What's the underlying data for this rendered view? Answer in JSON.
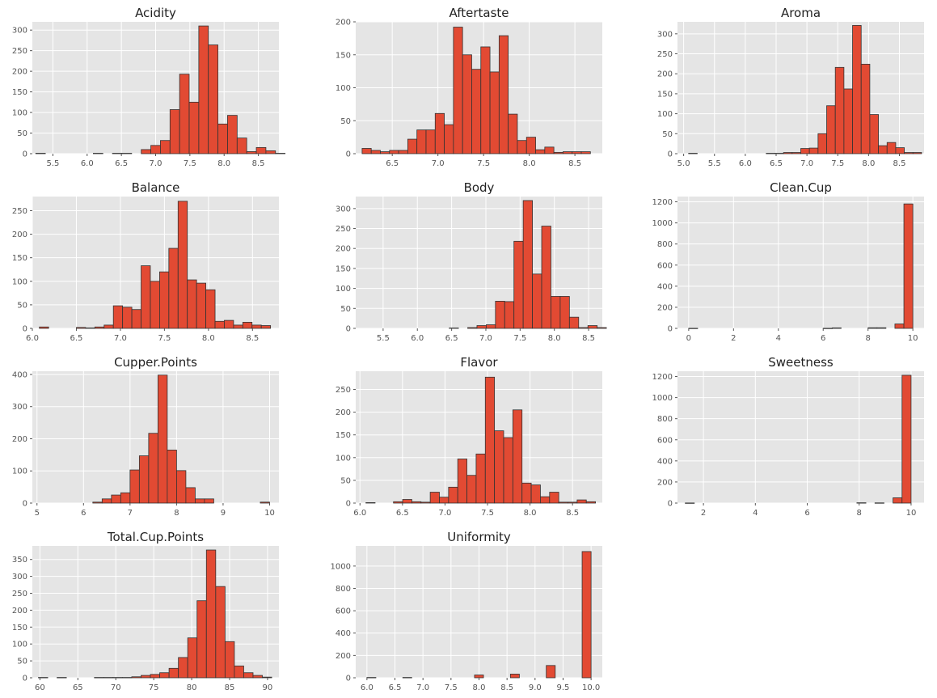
{
  "chart_data": [
    {
      "type": "bar",
      "title": "Acidity",
      "xlim": [
        5.2,
        8.8
      ],
      "ylim": [
        0,
        320
      ],
      "xticks": [
        5.5,
        6.0,
        6.5,
        7.0,
        7.5,
        8.0,
        8.5
      ],
      "yticks": [
        0,
        50,
        100,
        150,
        200,
        250,
        300
      ],
      "xdec": 1,
      "bin_start": 5.25,
      "bin_width": 0.14,
      "values": [
        1,
        0,
        0,
        0,
        0,
        0,
        1,
        0,
        1,
        1,
        0,
        10,
        20,
        32,
        107,
        193,
        125,
        310,
        264,
        72,
        93,
        38,
        5,
        15,
        7,
        1
      ]
    },
    {
      "type": "bar",
      "title": "Aftertaste",
      "xlim": [
        6.1,
        8.8
      ],
      "ylim": [
        0,
        200
      ],
      "xticks": [
        6.5,
        7.0,
        7.5,
        8.0,
        8.5
      ],
      "yticks": [
        0,
        50,
        100,
        150,
        200
      ],
      "xdec": 1,
      "bin_start": 6.17,
      "bin_width": 0.1,
      "values": [
        8,
        5,
        3,
        5,
        5,
        22,
        36,
        36,
        61,
        44,
        192,
        150,
        128,
        162,
        124,
        179,
        60,
        20,
        25,
        6,
        10,
        2,
        3,
        3,
        3
      ]
    },
    {
      "type": "bar",
      "title": "Aroma",
      "xlim": [
        4.9,
        8.9
      ],
      "ylim": [
        0,
        330
      ],
      "xticks": [
        5.0,
        5.5,
        6.0,
        6.5,
        7.0,
        7.5,
        8.0,
        8.5
      ],
      "yticks": [
        0,
        50,
        100,
        150,
        200,
        250,
        300
      ],
      "xdec": 1,
      "bin_start": 5.08,
      "bin_width": 0.14,
      "values": [
        1,
        0,
        0,
        0,
        0,
        0,
        0,
        0,
        0,
        1,
        1,
        3,
        3,
        13,
        14,
        50,
        120,
        216,
        162,
        321,
        224,
        98,
        20,
        28,
        15,
        3,
        3
      ]
    },
    {
      "type": "bar",
      "title": "Balance",
      "xlim": [
        6.0,
        8.8
      ],
      "ylim": [
        0,
        280
      ],
      "xticks": [
        6.0,
        6.5,
        7.0,
        7.5,
        8.0,
        8.5
      ],
      "yticks": [
        0,
        50,
        100,
        150,
        200,
        250
      ],
      "xdec": 1,
      "bin_start": 6.08,
      "bin_width": 0.105,
      "values": [
        3,
        0,
        0,
        0,
        2,
        1,
        3,
        7,
        48,
        45,
        40,
        133,
        100,
        120,
        170,
        270,
        103,
        96,
        82,
        15,
        17,
        7,
        13,
        7,
        6
      ]
    },
    {
      "type": "bar",
      "title": "Body",
      "xlim": [
        5.1,
        8.7
      ],
      "ylim": [
        0,
        330
      ],
      "xticks": [
        5.5,
        6.0,
        6.5,
        7.0,
        7.5,
        8.0,
        8.5
      ],
      "yticks": [
        0,
        50,
        100,
        150,
        200,
        250,
        300
      ],
      "xdec": 1,
      "bin_start": 5.25,
      "bin_width": 0.135,
      "values": [
        0,
        0,
        0,
        0,
        0,
        0,
        0,
        0,
        0,
        1,
        0,
        2,
        7,
        9,
        68,
        67,
        218,
        320,
        136,
        256,
        80,
        80,
        28,
        2,
        7,
        2
      ]
    },
    {
      "type": "bar",
      "title": "Clean.Cup",
      "xlim": [
        -0.5,
        10.5
      ],
      "ylim": [
        0,
        1250
      ],
      "xticks": [
        0,
        2,
        4,
        6,
        8,
        10
      ],
      "yticks": [
        0,
        200,
        400,
        600,
        800,
        1000,
        1200
      ],
      "xdec": 0,
      "bin_start": 0.0,
      "bin_width": 0.4,
      "values": [
        1,
        0,
        0,
        0,
        0,
        0,
        0,
        0,
        0,
        0,
        0,
        0,
        0,
        0,
        0,
        1,
        5,
        0,
        0,
        0,
        6,
        6,
        0,
        42,
        1180
      ]
    },
    {
      "type": "bar",
      "title": "Cupper.Points",
      "xlim": [
        4.9,
        10.2
      ],
      "ylim": [
        0,
        410
      ],
      "xticks": [
        5,
        6,
        7,
        8,
        9,
        10
      ],
      "yticks": [
        0,
        100,
        200,
        300,
        400
      ],
      "xdec": 0,
      "bin_start": 5.0,
      "bin_width": 0.2,
      "values": [
        0,
        0,
        0,
        0,
        0,
        0,
        3,
        13,
        25,
        32,
        103,
        147,
        217,
        398,
        165,
        101,
        48,
        13,
        13,
        0,
        0,
        0,
        0,
        0,
        3
      ]
    },
    {
      "type": "bar",
      "title": "Flavor",
      "xlim": [
        5.95,
        8.85
      ],
      "ylim": [
        0,
        290
      ],
      "xticks": [
        6.0,
        6.5,
        7.0,
        7.5,
        8.0,
        8.5
      ],
      "yticks": [
        0,
        50,
        100,
        150,
        200,
        250
      ],
      "xdec": 1,
      "bin_start": 6.07,
      "bin_width": 0.108,
      "values": [
        1,
        0,
        0,
        3,
        8,
        3,
        2,
        24,
        13,
        35,
        97,
        61,
        108,
        277,
        159,
        144,
        205,
        44,
        40,
        14,
        24,
        2,
        2,
        7,
        3
      ]
    },
    {
      "type": "bar",
      "title": "Sweetness",
      "xlim": [
        1.0,
        10.5
      ],
      "ylim": [
        0,
        1250
      ],
      "xticks": [
        2,
        4,
        6,
        8,
        10
      ],
      "yticks": [
        0,
        200,
        400,
        600,
        800,
        1000,
        1200
      ],
      "xdec": 0,
      "bin_start": 1.3,
      "bin_width": 0.348,
      "values": [
        1,
        0,
        0,
        0,
        0,
        0,
        0,
        0,
        0,
        0,
        0,
        0,
        0,
        0,
        0,
        0,
        0,
        0,
        0,
        3,
        0,
        2,
        0,
        50,
        1212
      ]
    },
    {
      "type": "bar",
      "title": "Total.Cup.Points",
      "xlim": [
        59.0,
        91.5
      ],
      "ylim": [
        0,
        390
      ],
      "xticks": [
        60,
        65,
        70,
        75,
        80,
        85,
        90
      ],
      "yticks": [
        0,
        50,
        100,
        150,
        200,
        250,
        300,
        350
      ],
      "xdec": 0,
      "bin_start": 59.8,
      "bin_width": 1.23,
      "values": [
        1,
        0,
        1,
        0,
        0,
        0,
        1,
        1,
        1,
        1,
        3,
        7,
        10,
        15,
        28,
        60,
        118,
        228,
        378,
        270,
        107,
        35,
        15,
        7,
        2
      ]
    },
    {
      "type": "bar",
      "title": "Uniformity",
      "xlim": [
        5.8,
        10.2
      ],
      "ylim": [
        0,
        1180
      ],
      "xticks": [
        6.0,
        6.5,
        7.0,
        7.5,
        8.0,
        8.5,
        9.0,
        9.5,
        10.0
      ],
      "yticks": [
        0,
        200,
        400,
        600,
        800,
        1000
      ],
      "xdec": 1,
      "bin_start": 6.0,
      "bin_width": 0.16,
      "values": [
        3,
        0,
        0,
        0,
        3,
        0,
        0,
        0,
        0,
        0,
        0,
        0,
        0,
        0,
        0,
        25,
        0,
        0,
        0,
        0,
        0,
        0,
        0,
        0,
        0,
        0,
        0,
        0,
        0,
        0,
        0,
        0,
        0,
        0,
        0,
        0,
        0,
        0,
        0,
        0,
        0,
        0,
        0,
        0,
        0,
        0,
        0,
        0,
        0,
        0
      ]
    }
  ]
}
